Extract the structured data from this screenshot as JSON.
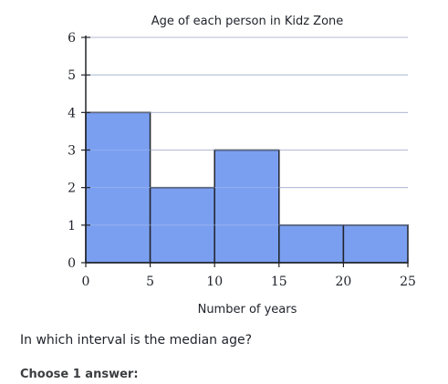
{
  "chart_data": {
    "type": "bar",
    "title": "Age of each person in Kidz Zone",
    "xlabel": "Number of years",
    "ylabel": "",
    "bins": [
      {
        "start": 0,
        "end": 5,
        "value": 4
      },
      {
        "start": 5,
        "end": 10,
        "value": 2
      },
      {
        "start": 10,
        "end": 15,
        "value": 3
      },
      {
        "start": 15,
        "end": 20,
        "value": 1
      },
      {
        "start": 20,
        "end": 25,
        "value": 1
      }
    ],
    "xlim": [
      0,
      25
    ],
    "ylim": [
      0,
      6
    ],
    "x_ticks": [
      0,
      5,
      10,
      15,
      20,
      25
    ],
    "y_ticks": [
      0,
      1,
      2,
      3,
      4,
      5,
      6
    ],
    "grid": true,
    "bar_color": "#7b9ff0",
    "bar_edge_color": "#21242c"
  },
  "question": {
    "text": "In which interval is the median age?",
    "choose_label": "Choose 1 answer:"
  }
}
